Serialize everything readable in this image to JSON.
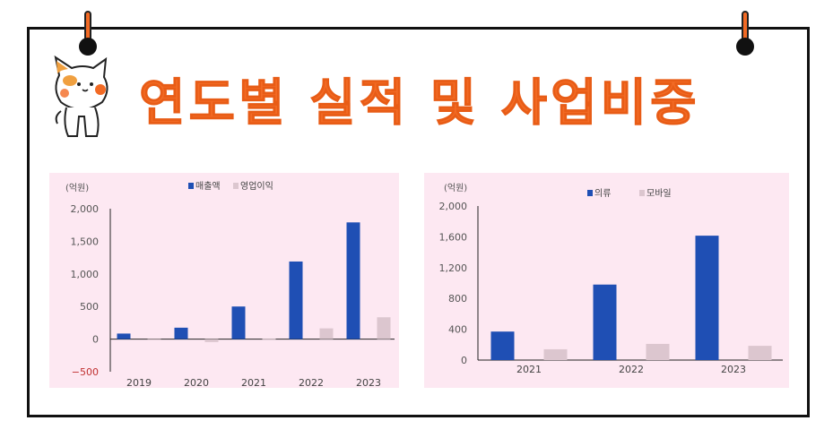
{
  "title": "연도별 실적 및 사업비중",
  "colors": {
    "accent": "#f26a24",
    "primary_bar": "#1f4fb4",
    "secondary_bar": "#dcc6cf",
    "panel_bg": "#fde8f2"
  },
  "mascot": {
    "icon": "cat-icon"
  },
  "chart_data": [
    {
      "type": "bar",
      "unit_label": "(억원)",
      "categories": [
        "2019",
        "2020",
        "2021",
        "2022",
        "2023"
      ],
      "series": [
        {
          "name": "매출액",
          "values": [
            85,
            175,
            500,
            1190,
            1790
          ]
        },
        {
          "name": "영업이익",
          "values": [
            -10,
            -45,
            5,
            165,
            335
          ]
        }
      ],
      "y_ticks": [
        "2,000",
        "1,500",
        "1,000",
        "500",
        "0",
        "-500"
      ],
      "ylim": [
        -500,
        2000
      ],
      "legend_position": "top"
    },
    {
      "type": "bar",
      "unit_label": "(억원)",
      "categories": [
        "2021",
        "2022",
        "2023"
      ],
      "series": [
        {
          "name": "의류",
          "values": [
            370,
            980,
            1615
          ]
        },
        {
          "name": "모바일",
          "values": [
            140,
            210,
            185
          ]
        }
      ],
      "y_ticks": [
        "2,000",
        "1,600",
        "1,200",
        "800",
        "400",
        "0"
      ],
      "ylim": [
        0,
        2000
      ],
      "legend_position": "top"
    }
  ]
}
